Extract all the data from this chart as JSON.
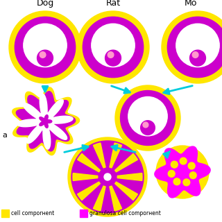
{
  "bg_color": "#ffffff",
  "yellow": "#FFE600",
  "magenta": "#CC00CC",
  "bright_magenta": "#FF00FF",
  "pink": "#FF99CC",
  "cyan": "#00CCDD",
  "white": "#FFFFFF",
  "title_dog": "Dog",
  "title_rat": "Rat",
  "title_mo": "Mo",
  "legend_text1": "cell comporнent",
  "legend_text2": "granulosa cell comporнent"
}
